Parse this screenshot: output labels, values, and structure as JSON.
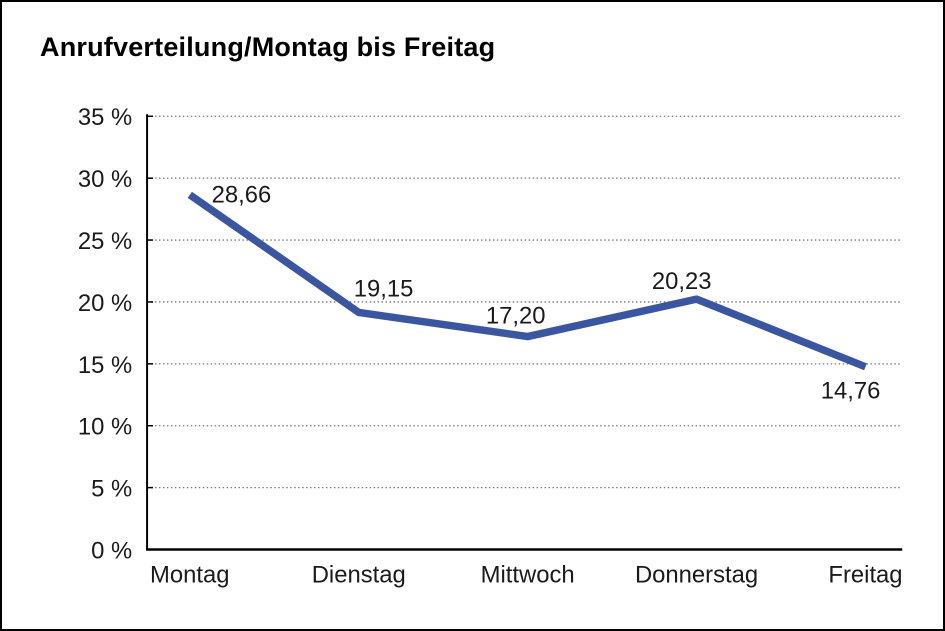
{
  "chart_data": {
    "type": "line",
    "title": "Anrufverteilung/Montag bis Freitag",
    "categories": [
      "Montag",
      "Dienstag",
      "Mittwoch",
      "Donnerstag",
      "Freitag"
    ],
    "series": [
      {
        "name": "Anrufverteilung",
        "values": [
          28.66,
          19.15,
          17.2,
          20.23,
          14.76
        ],
        "point_labels": [
          "28,66",
          "19,15",
          "17,20",
          "20,23",
          "14,76"
        ]
      }
    ],
    "xlabel": "",
    "ylabel": "",
    "ylim": [
      0,
      35
    ],
    "ytick_step": 5,
    "ytick_labels": [
      "0 %",
      "5 %",
      "10 %",
      "15 %",
      "20 %",
      "25 %",
      "30 %",
      "35 %"
    ],
    "grid": "horizontal-dotted",
    "legend": "none",
    "colors": {
      "line": "#3A56A0",
      "axis": "#000000",
      "gridline": "#777777",
      "text": "#1a1a1a"
    }
  }
}
